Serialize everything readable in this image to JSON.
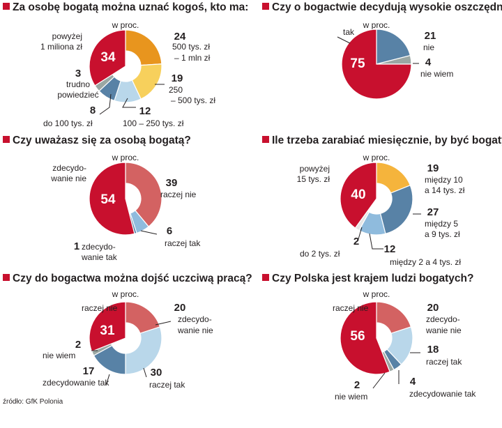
{
  "source": "źródło: GfK Polonia",
  "chart_data": [
    {
      "type": "pie",
      "title": "Za osobę bogatą można uznać kogoś, kto ma:",
      "unit": "w proc.",
      "slices": [
        {
          "name": "500 tys. zł – 1 mln zł",
          "value": 24,
          "color": "#e8951e",
          "label_lines": [
            "500 tys. zł",
            "– 1 mln zł"
          ]
        },
        {
          "name": "250 – 500 tys. zł",
          "value": 19,
          "color": "#f7d05c",
          "label_lines": [
            "250",
            "– 500 tys. zł"
          ]
        },
        {
          "name": "100 – 250 tys. zł",
          "value": 12,
          "color": "#b9d7ea",
          "label_lines": [
            "100 – 250 tys. zł"
          ]
        },
        {
          "name": "do 100 tys. zł",
          "value": 8,
          "color": "#5882a6",
          "label_lines": [
            "do 100 tys. zł"
          ]
        },
        {
          "name": "trudno powiedzieć",
          "value": 3,
          "color": "#9aa7a3",
          "label_lines": [
            "trudno",
            "powiedzieć"
          ]
        },
        {
          "name": "powyżej 1 miliona zł",
          "value": 34,
          "color": "#c8102e",
          "label_lines": [
            "powyżej",
            "1 miliona zł"
          ]
        }
      ]
    },
    {
      "type": "pie",
      "title": "Czy o bogactwie decydują wysokie oszczędności?",
      "unit": "w proc.",
      "slices": [
        {
          "name": "nie",
          "value": 21,
          "color": "#5882a6",
          "label_lines": [
            "nie"
          ]
        },
        {
          "name": "nie wiem",
          "value": 4,
          "color": "#9aa7a3",
          "label_lines": [
            "nie wiem"
          ]
        },
        {
          "name": "tak",
          "value": 75,
          "color": "#c8102e",
          "label_lines": [
            "tak"
          ]
        }
      ]
    },
    {
      "type": "pie",
      "title": "Czy uważasz się za osobą bogatą?",
      "unit": "w proc.",
      "slices": [
        {
          "name": "raczej nie",
          "value": 39,
          "color": "#d36262",
          "label_lines": [
            "raczej nie"
          ]
        },
        {
          "name": "raczej tak",
          "value": 6,
          "color": "#8fbbdd",
          "label_lines": [
            "raczej tak"
          ]
        },
        {
          "name": "zdecydowanie tak",
          "value": 1,
          "color": "#5882a6",
          "label_lines": [
            "zdecydo-",
            "wanie tak"
          ]
        },
        {
          "name": "zdecydowanie nie",
          "value": 54,
          "color": "#c8102e",
          "label_lines": [
            "zdecydo-",
            "wanie nie"
          ]
        }
      ]
    },
    {
      "type": "pie",
      "title": "Ile trzeba zarabiać miesięcznie, by być bogatym?",
      "unit": "w proc.",
      "slices": [
        {
          "name": "między 10 a 14 tys. zł",
          "value": 19,
          "color": "#f5b43c",
          "label_lines": [
            "między 10",
            "a 14 tys. zł"
          ]
        },
        {
          "name": "między 5 a 9 tys. zł",
          "value": 27,
          "color": "#5882a6",
          "label_lines": [
            "między 5",
            "a 9  tys. zł"
          ]
        },
        {
          "name": "między 2 a 4 tys. zł",
          "value": 12,
          "color": "#8fbbdd",
          "label_lines": [
            "między 2 a 4  tys. zł"
          ]
        },
        {
          "name": "do 2 tys. zł",
          "value": 2,
          "color": "#e6e6e6",
          "label_lines": [
            "do 2 tys. zł"
          ]
        },
        {
          "name": "powyżej 15 tys. zł",
          "value": 40,
          "color": "#c8102e",
          "label_lines": [
            "powyżej",
            "15 tys. zł"
          ]
        }
      ]
    },
    {
      "type": "pie",
      "title": "Czy do bogactwa można dojść uczciwą pracą?",
      "unit": "w proc.",
      "slices": [
        {
          "name": "zdecydowanie nie",
          "value": 20,
          "color": "#d36262",
          "label_lines": [
            "zdecydo-",
            "wanie nie"
          ]
        },
        {
          "name": "raczej tak",
          "value": 30,
          "color": "#b9d7ea",
          "label_lines": [
            "raczej tak"
          ]
        },
        {
          "name": "zdecydowanie tak",
          "value": 17,
          "color": "#5882a6",
          "label_lines": [
            "zdecydowanie tak"
          ]
        },
        {
          "name": "nie wiem",
          "value": 2,
          "color": "#9aa7a3",
          "label_lines": [
            "nie wiem"
          ]
        },
        {
          "name": "raczej nie",
          "value": 31,
          "color": "#c8102e",
          "label_lines": [
            "raczej nie"
          ]
        }
      ]
    },
    {
      "type": "pie",
      "title": "Czy Polska jest krajem ludzi bogatych?",
      "unit": "w proc.",
      "slices": [
        {
          "name": "zdecydowanie nie",
          "value": 20,
          "color": "#d36262",
          "label_lines": [
            "zdecydo-",
            "wanie nie"
          ]
        },
        {
          "name": "raczej tak",
          "value": 18,
          "color": "#b9d7ea",
          "label_lines": [
            "raczej tak"
          ]
        },
        {
          "name": "zdecydowanie tak",
          "value": 4,
          "color": "#5882a6",
          "label_lines": [
            "zdecydowanie tak"
          ]
        },
        {
          "name": "nie wiem",
          "value": 2,
          "color": "#9aa7a3",
          "label_lines": [
            "nie wiem"
          ]
        },
        {
          "name": "raczej nie",
          "value": 56,
          "color": "#c8102e",
          "label_lines": [
            "raczej nie"
          ]
        }
      ]
    }
  ]
}
